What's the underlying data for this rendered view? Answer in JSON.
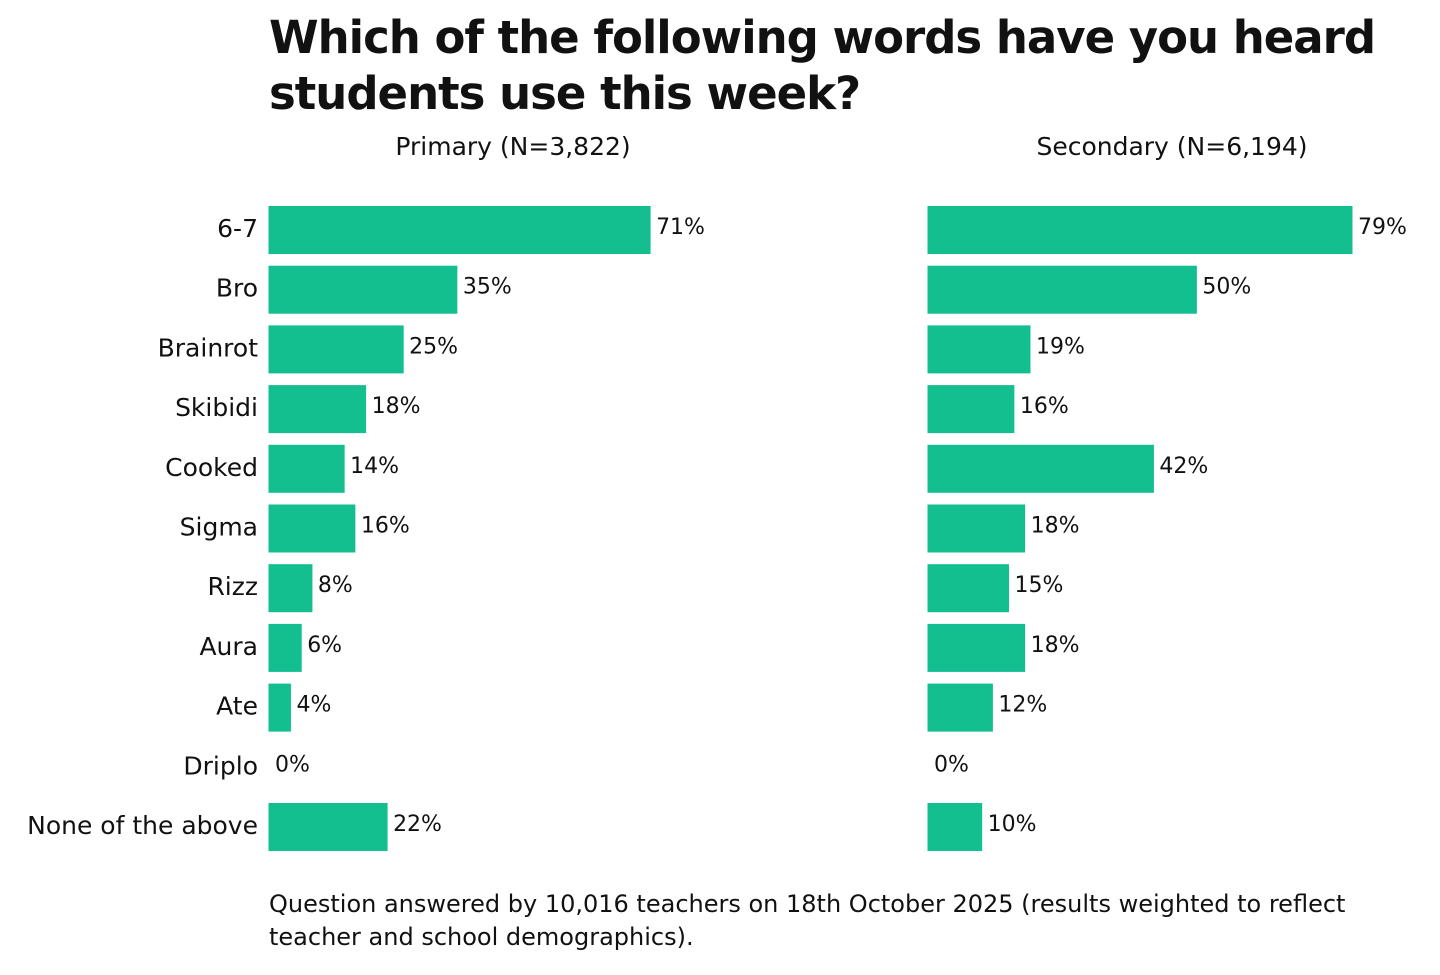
{
  "chart_data": {
    "type": "bar",
    "orientation": "horizontal",
    "title": "Which of the following words have you heard students use this week?",
    "note": "Question answered by 10,016 teachers on 18th October 2025 (results weighted to reflect teacher and school demographics).",
    "categories": [
      "6-7",
      "Bro",
      "Brainrot",
      "Skibidi",
      "Cooked",
      "Sigma",
      "Rizz",
      "Aura",
      "Ate",
      "Driplo",
      "None of the above"
    ],
    "series": [
      {
        "name": "Primary (N=3,822)",
        "color": "#13bf8f",
        "values": [
          71,
          35,
          25,
          18,
          14,
          16,
          8,
          6,
          4,
          0,
          22
        ],
        "value_labels": [
          "71%",
          "35%",
          "25%",
          "18%",
          "14%",
          "16%",
          "8%",
          "6%",
          "4%",
          "0%",
          "22%"
        ]
      },
      {
        "name": "Secondary (N=6,194)",
        "color": "#13bf8f",
        "values": [
          79,
          50,
          19,
          16,
          42,
          18,
          15,
          18,
          12,
          0,
          10
        ],
        "value_labels": [
          "79%",
          "50%",
          "19%",
          "16%",
          "42%",
          "18%",
          "15%",
          "18%",
          "12%",
          "0%",
          "10%"
        ]
      }
    ]
  }
}
